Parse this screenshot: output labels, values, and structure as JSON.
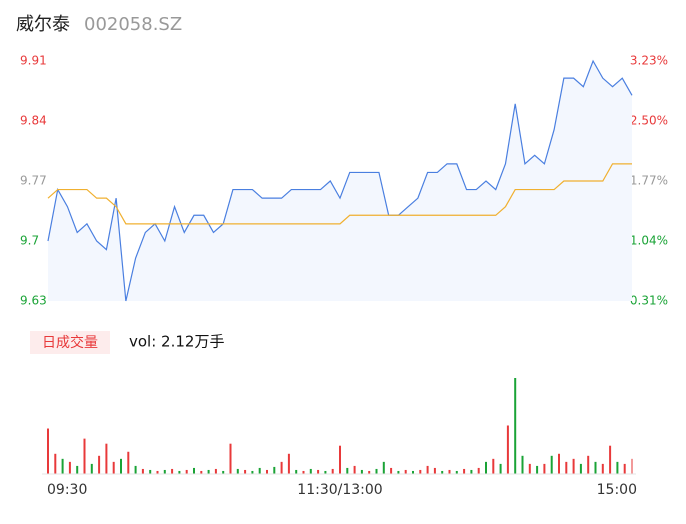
{
  "chart_data": [
    {
      "type": "line",
      "title": "威尔泰",
      "subtitle": "002058.SZ",
      "x": [
        0,
        4,
        8,
        12,
        16,
        20,
        24,
        28,
        32,
        36,
        40,
        44,
        48,
        52,
        56,
        60,
        64,
        68,
        72,
        76,
        80,
        84,
        88,
        92,
        96,
        100,
        104,
        108,
        112,
        116,
        120,
        124,
        128,
        132,
        136,
        140,
        144,
        148,
        152,
        156,
        160,
        164,
        168,
        172,
        176,
        180,
        184,
        188,
        192,
        196,
        200,
        204,
        208,
        212,
        216,
        220,
        224,
        228,
        232,
        236,
        240
      ],
      "xlim": [
        0,
        240
      ],
      "series": [
        {
          "color": "#4a7fe0",
          "fill": "#f3f7fe",
          "values": [
            9.7,
            9.76,
            9.74,
            9.71,
            9.72,
            9.7,
            9.69,
            9.75,
            9.63,
            9.68,
            9.71,
            9.72,
            9.7,
            9.74,
            9.71,
            9.73,
            9.73,
            9.71,
            9.72,
            9.76,
            9.76,
            9.76,
            9.75,
            9.75,
            9.75,
            9.76,
            9.76,
            9.76,
            9.76,
            9.77,
            9.75,
            9.78,
            9.78,
            9.78,
            9.78,
            9.73,
            9.73,
            9.74,
            9.75,
            9.78,
            9.78,
            9.79,
            9.79,
            9.76,
            9.76,
            9.77,
            9.76,
            9.79,
            9.86,
            9.79,
            9.8,
            9.79,
            9.83,
            9.89,
            9.89,
            9.88,
            9.91,
            9.89,
            9.88,
            9.89,
            9.87
          ]
        },
        {
          "color": "#f0b030",
          "values": [
            9.75,
            9.76,
            9.76,
            9.76,
            9.76,
            9.75,
            9.75,
            9.74,
            9.72,
            9.72,
            9.72,
            9.72,
            9.72,
            9.72,
            9.72,
            9.72,
            9.72,
            9.72,
            9.72,
            9.72,
            9.72,
            9.72,
            9.72,
            9.72,
            9.72,
            9.72,
            9.72,
            9.72,
            9.72,
            9.72,
            9.72,
            9.73,
            9.73,
            9.73,
            9.73,
            9.73,
            9.73,
            9.73,
            9.73,
            9.73,
            9.73,
            9.73,
            9.73,
            9.73,
            9.73,
            9.73,
            9.73,
            9.74,
            9.76,
            9.76,
            9.76,
            9.76,
            9.76,
            9.77,
            9.77,
            9.77,
            9.77,
            9.77,
            9.79,
            9.79,
            9.79
          ]
        }
      ],
      "ylim": [
        9.63,
        9.91
      ],
      "yticks": [
        9.91,
        9.84,
        9.77,
        9.7,
        9.63
      ],
      "y2lim": [
        0.31,
        3.23
      ],
      "y2ticks": [
        {
          "value": 3.23,
          "label": "3.23%"
        },
        {
          "value": 2.5,
          "label": "2.50%"
        },
        {
          "value": 1.77,
          "label": "1.77%"
        },
        {
          "value": 1.04,
          "label": "1.04%"
        },
        {
          "value": 0.31,
          "label": "0.31%"
        }
      ],
      "tick_colors": [
        "#e8393a",
        "#e8393a",
        "#999999",
        "#1aa336",
        "#1aa336"
      ]
    },
    {
      "type": "bar",
      "button": "日成交量",
      "label": "vol: 2.12万手",
      "x": [
        0,
        3,
        6,
        9,
        12,
        15,
        18,
        21,
        24,
        27,
        30,
        33,
        36,
        39,
        42,
        45,
        48,
        51,
        54,
        57,
        60,
        63,
        66,
        69,
        72,
        75,
        78,
        81,
        84,
        87,
        90,
        93,
        96,
        99,
        102,
        105,
        108,
        111,
        114,
        117,
        120,
        123,
        126,
        129,
        132,
        135,
        138,
        141,
        144,
        147,
        150,
        153,
        156,
        159,
        162,
        165,
        168,
        171,
        174,
        177,
        180,
        183,
        186,
        189,
        192,
        195,
        198,
        201,
        204,
        207,
        210,
        213,
        216,
        219,
        222,
        225,
        228,
        231,
        234,
        237,
        240
      ],
      "xlim": [
        0,
        240
      ],
      "values": [
        450,
        200,
        150,
        120,
        80,
        350,
        100,
        180,
        300,
        120,
        150,
        220,
        80,
        50,
        40,
        30,
        40,
        50,
        30,
        40,
        60,
        30,
        40,
        50,
        30,
        300,
        50,
        40,
        30,
        60,
        40,
        70,
        120,
        200,
        40,
        30,
        50,
        40,
        30,
        50,
        280,
        60,
        80,
        40,
        30,
        50,
        120,
        60,
        30,
        40,
        30,
        40,
        80,
        60,
        30,
        40,
        30,
        50,
        40,
        60,
        120,
        150,
        100,
        480,
        950,
        180,
        100,
        80,
        100,
        180,
        200,
        120,
        150,
        100,
        180,
        120,
        100,
        280,
        120,
        100,
        150
      ],
      "colors": [
        "#e8393a",
        "#e8393a",
        "#1aa336",
        "#e8393a",
        "#1aa336",
        "#e8393a",
        "#1aa336",
        "#e8393a",
        "#e8393a",
        "#e8393a",
        "#1aa336",
        "#e8393a",
        "#1aa336",
        "#e8393a",
        "#1aa336",
        "#e8393a",
        "#1aa336",
        "#e8393a",
        "#1aa336",
        "#e8393a",
        "#1aa336",
        "#e8393a",
        "#1aa336",
        "#e8393a",
        "#1aa336",
        "#e8393a",
        "#1aa336",
        "#e8393a",
        "#1aa336",
        "#1aa336",
        "#e8393a",
        "#1aa336",
        "#e8393a",
        "#e8393a",
        "#1aa336",
        "#e8393a",
        "#1aa336",
        "#e8393a",
        "#1aa336",
        "#e8393a",
        "#e8393a",
        "#1aa336",
        "#e8393a",
        "#1aa336",
        "#e8393a",
        "#1aa336",
        "#1aa336",
        "#e8393a",
        "#1aa336",
        "#e8393a",
        "#1aa336",
        "#e8393a",
        "#e8393a",
        "#e8393a",
        "#1aa336",
        "#e8393a",
        "#1aa336",
        "#e8393a",
        "#1aa336",
        "#e8393a",
        "#1aa336",
        "#e8393a",
        "#1aa336",
        "#e8393a",
        "#1aa336",
        "#1aa336",
        "#e8393a",
        "#1aa336",
        "#e8393a",
        "#1aa336",
        "#e8393a",
        "#e8393a",
        "#e8393a",
        "#1aa336",
        "#e8393a",
        "#1aa336",
        "#e8393a",
        "#e8393a",
        "#1aa336",
        "#e8393a",
        "#f29a9a"
      ],
      "xticks": [
        {
          "value": 0,
          "label": "09:30"
        },
        {
          "value": 120,
          "label": "11:30/13:00"
        },
        {
          "value": 240,
          "label": "15:00"
        }
      ]
    }
  ]
}
